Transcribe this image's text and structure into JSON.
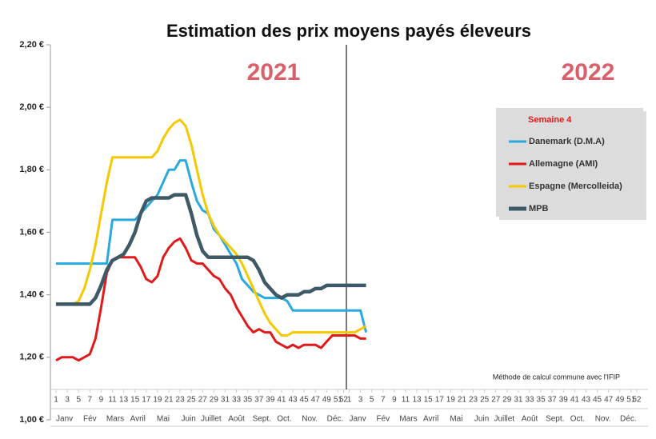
{
  "chart_data": {
    "type": "line",
    "title": "Estimation des prix moyens payés éleveurs",
    "annotations": [
      "2021",
      "2022"
    ],
    "legend_title": "Semaine 4",
    "note": "Méthode de calcul commune avec l'IFIP",
    "x": [
      1,
      2,
      3,
      4,
      5,
      6,
      7,
      8,
      9,
      10,
      11,
      12,
      13,
      14,
      15,
      16,
      17,
      18,
      19,
      20,
      21,
      22,
      23,
      24,
      25,
      26,
      27,
      28,
      29,
      30,
      31,
      32,
      33,
      34,
      35,
      36,
      37,
      38,
      39,
      40,
      41,
      42,
      43,
      44,
      45,
      46,
      47,
      48,
      49,
      50,
      51,
      52,
      53,
      54,
      55,
      56
    ],
    "series": [
      {
        "name": "Danemark (D.M.A)",
        "color": "#2aa9df",
        "values": [
          1.5,
          1.5,
          1.5,
          1.5,
          1.5,
          1.5,
          1.5,
          1.5,
          1.5,
          1.5,
          1.64,
          1.64,
          1.64,
          1.64,
          1.64,
          1.66,
          1.68,
          1.7,
          1.72,
          1.76,
          1.8,
          1.8,
          1.83,
          1.83,
          1.76,
          1.7,
          1.67,
          1.66,
          1.61,
          1.59,
          1.56,
          1.53,
          1.5,
          1.45,
          1.43,
          1.41,
          1.4,
          1.39,
          1.39,
          1.39,
          1.39,
          1.38,
          1.35,
          1.35,
          1.35,
          1.35,
          1.35,
          1.35,
          1.35,
          1.35,
          1.35,
          1.35,
          1.35,
          1.35,
          1.35,
          1.28
        ]
      },
      {
        "name": "Allemagne (AMI)",
        "color": "#e0191b",
        "values": [
          1.19,
          1.2,
          1.2,
          1.2,
          1.19,
          1.2,
          1.21,
          1.26,
          1.36,
          1.47,
          1.51,
          1.52,
          1.52,
          1.52,
          1.52,
          1.49,
          1.45,
          1.44,
          1.46,
          1.52,
          1.55,
          1.57,
          1.58,
          1.55,
          1.51,
          1.5,
          1.5,
          1.48,
          1.46,
          1.45,
          1.42,
          1.4,
          1.36,
          1.33,
          1.3,
          1.28,
          1.29,
          1.28,
          1.28,
          1.25,
          1.24,
          1.23,
          1.24,
          1.23,
          1.24,
          1.24,
          1.24,
          1.23,
          1.25,
          1.27,
          1.27,
          1.27,
          1.27,
          1.27,
          1.26,
          1.26
        ]
      },
      {
        "name": "Espagne (Mercolleida)",
        "color": "#f5c800",
        "values": [
          1.37,
          1.37,
          1.37,
          1.37,
          1.38,
          1.42,
          1.48,
          1.56,
          1.66,
          1.76,
          1.84,
          1.84,
          1.84,
          1.84,
          1.84,
          1.84,
          1.84,
          1.84,
          1.86,
          1.9,
          1.93,
          1.95,
          1.96,
          1.94,
          1.88,
          1.8,
          1.72,
          1.66,
          1.62,
          1.59,
          1.57,
          1.55,
          1.53,
          1.5,
          1.46,
          1.42,
          1.38,
          1.34,
          1.31,
          1.29,
          1.27,
          1.27,
          1.28,
          1.28,
          1.28,
          1.28,
          1.28,
          1.28,
          1.28,
          1.28,
          1.28,
          1.28,
          1.28,
          1.28,
          1.29,
          1.3
        ]
      },
      {
        "name": "MPB",
        "color": "#3d5a66",
        "values": [
          1.37,
          1.37,
          1.37,
          1.37,
          1.37,
          1.37,
          1.37,
          1.39,
          1.43,
          1.48,
          1.51,
          1.52,
          1.53,
          1.56,
          1.6,
          1.66,
          1.7,
          1.71,
          1.71,
          1.71,
          1.71,
          1.72,
          1.72,
          1.72,
          1.66,
          1.59,
          1.54,
          1.52,
          1.52,
          1.52,
          1.52,
          1.52,
          1.52,
          1.52,
          1.52,
          1.51,
          1.48,
          1.44,
          1.42,
          1.4,
          1.39,
          1.4,
          1.4,
          1.4,
          1.41,
          1.41,
          1.42,
          1.42,
          1.43,
          1.43,
          1.43,
          1.43,
          1.43,
          1.43,
          1.43,
          1.43
        ]
      }
    ],
    "xlim": [
      0,
      106
    ],
    "xticks": [
      1,
      3,
      5,
      7,
      9,
      11,
      13,
      15,
      17,
      19,
      21,
      23,
      25,
      27,
      29,
      31,
      33,
      35,
      37,
      39,
      41,
      43,
      45,
      47,
      49,
      51,
      52,
      {
        "value": 53,
        "label": "1"
      },
      {
        "value": 55,
        "label": "3"
      },
      {
        "value": 57,
        "label": "5"
      },
      {
        "value": 59,
        "label": "7"
      },
      {
        "value": 61,
        "label": "9"
      },
      {
        "value": 63,
        "label": "11"
      },
      {
        "value": 65,
        "label": "13"
      },
      {
        "value": 67,
        "label": "15"
      },
      {
        "value": 69,
        "label": "17"
      },
      {
        "value": 71,
        "label": "19"
      },
      {
        "value": 73,
        "label": "21"
      },
      {
        "value": 75,
        "label": "23"
      },
      {
        "value": 77,
        "label": "25"
      },
      {
        "value": 79,
        "label": "27"
      },
      {
        "value": 81,
        "label": "29"
      },
      {
        "value": 83,
        "label": "31"
      },
      {
        "value": 85,
        "label": "33"
      },
      {
        "value": 87,
        "label": "35"
      },
      {
        "value": 89,
        "label": "37"
      },
      {
        "value": 91,
        "label": "39"
      },
      {
        "value": 93,
        "label": "41"
      },
      {
        "value": 95,
        "label": "43"
      },
      {
        "value": 97,
        "label": "45"
      },
      {
        "value": 99,
        "label": "47"
      },
      {
        "value": 101,
        "label": "49"
      },
      {
        "value": 103,
        "label": "51"
      },
      {
        "value": 104,
        "label": "52"
      }
    ],
    "month_labels": [
      {
        "value": 2.5,
        "label": "Janv"
      },
      {
        "value": 7,
        "label": "Fév"
      },
      {
        "value": 11.5,
        "label": "Mars"
      },
      {
        "value": 15.5,
        "label": "Avril"
      },
      {
        "value": 20,
        "label": "Mai"
      },
      {
        "value": 24.5,
        "label": "Juin"
      },
      {
        "value": 28.5,
        "label": "Juillet"
      },
      {
        "value": 33,
        "label": "Août"
      },
      {
        "value": 37.5,
        "label": "Sept."
      },
      {
        "value": 41.5,
        "label": "Oct."
      },
      {
        "value": 46,
        "label": "Nov."
      },
      {
        "value": 50.5,
        "label": "Déc."
      },
      {
        "value": 54.5,
        "label": "Janv"
      },
      {
        "value": 59,
        "label": "Fév"
      },
      {
        "value": 63.5,
        "label": "Mars"
      },
      {
        "value": 67.5,
        "label": "Avril"
      },
      {
        "value": 72,
        "label": "Mai"
      },
      {
        "value": 76.5,
        "label": "Juin"
      },
      {
        "value": 80.5,
        "label": "Juillet"
      },
      {
        "value": 85,
        "label": "Août"
      },
      {
        "value": 89.5,
        "label": "Sept."
      },
      {
        "value": 93.5,
        "label": "Oct."
      },
      {
        "value": 98,
        "label": "Nov."
      },
      {
        "value": 102.5,
        "label": "Déc."
      }
    ],
    "year_divider": 52.5,
    "ylim": [
      1.0,
      2.2
    ],
    "yticks": [
      {
        "value": 1.0,
        "label": "1,00 €"
      },
      {
        "value": 1.2,
        "label": "1,20 €"
      },
      {
        "value": 1.4,
        "label": "1,40 €"
      },
      {
        "value": 1.6,
        "label": "1,60 €"
      },
      {
        "value": 1.8,
        "label": "1,80 €"
      },
      {
        "value": 2.0,
        "label": "2,00 €"
      },
      {
        "value": 2.2,
        "label": "2,20 €"
      }
    ]
  }
}
